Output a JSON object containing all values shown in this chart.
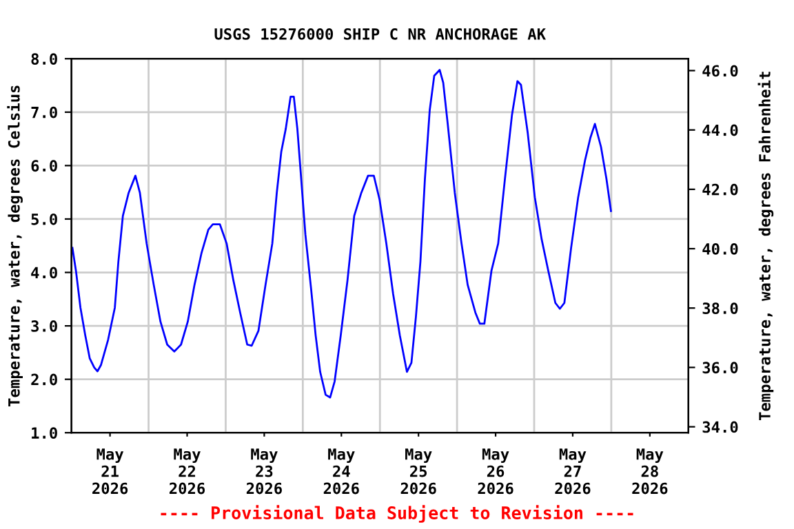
{
  "chart_data": {
    "type": "line",
    "title": "USGS 15276000 SHIP C NR ANCHORAGE AK",
    "ylabel": "Temperature, water, degrees Celsius",
    "y2label": "Temperature, water, degrees Fahrenheit",
    "annotations": [
      "---- Provisional Data Subject to Revision ----"
    ],
    "xlim": [
      "2026-05-20T12:00",
      "2026-05-28T12:00"
    ],
    "xticks": [
      {
        "value": "2026-05-21T00:00",
        "label": "May\n21\n2026"
      },
      {
        "value": "2026-05-22T00:00",
        "label": "May\n22\n2026"
      },
      {
        "value": "2026-05-23T00:00",
        "label": "May\n23\n2026"
      },
      {
        "value": "2026-05-24T00:00",
        "label": "May\n24\n2026"
      },
      {
        "value": "2026-05-25T00:00",
        "label": "May\n25\n2026"
      },
      {
        "value": "2026-05-26T00:00",
        "label": "May\n26\n2026"
      },
      {
        "value": "2026-05-27T00:00",
        "label": "May\n27\n2026"
      },
      {
        "value": "2026-05-28T00:00",
        "label": "May\n28\n2026"
      },
      {
        "value": "2026-05-21T12:00",
        "label": null
      },
      {
        "value": "2026-05-22T12:00",
        "label": null
      },
      {
        "value": "2026-05-23T12:00",
        "label": null
      },
      {
        "value": "2026-05-24T12:00",
        "label": null
      },
      {
        "value": "2026-05-25T12:00",
        "label": null
      },
      {
        "value": "2026-05-26T12:00",
        "label": null
      },
      {
        "value": "2026-05-27T12:00",
        "label": null
      }
    ],
    "ylim": [
      1.0,
      8.0
    ],
    "yticks": [
      {
        "value": 1,
        "label": "1.0"
      },
      {
        "value": 2,
        "label": "2.0"
      },
      {
        "value": 3,
        "label": "3.0"
      },
      {
        "value": 4,
        "label": "4.0"
      },
      {
        "value": 5,
        "label": "5.0"
      },
      {
        "value": 6,
        "label": "6.0"
      },
      {
        "value": 7,
        "label": "7.0"
      },
      {
        "value": 8,
        "label": "8.0"
      }
    ],
    "y2lim": [
      33.8,
      46.4
    ],
    "y2ticks": [
      {
        "value": 34,
        "label": "34.0"
      },
      {
        "value": 36,
        "label": "36.0"
      },
      {
        "value": 38,
        "label": "38.0"
      },
      {
        "value": 40,
        "label": "40.0"
      },
      {
        "value": 42,
        "label": "42.0"
      },
      {
        "value": 44,
        "label": "44.0"
      },
      {
        "value": 46,
        "label": "46.0"
      }
    ],
    "grid": true,
    "legend": false,
    "line_style": "solid",
    "series": [
      {
        "color": "#0000ff",
        "x": [
          "2026-05-20T12:18",
          "2026-05-20T13:24",
          "2026-05-20T14:48",
          "2026-05-20T16:18",
          "2026-05-20T17:42",
          "2026-05-20T19:06",
          "2026-05-20T20:06",
          "2026-05-20T21:12",
          "2026-05-20T23:24",
          "2026-05-21T01:30",
          "2026-05-21T02:36",
          "2026-05-21T04:00",
          "2026-05-21T05:48",
          "2026-05-21T07:54",
          "2026-05-21T09:18",
          "2026-05-21T11:24",
          "2026-05-21T13:36",
          "2026-05-21T15:42",
          "2026-05-21T17:48",
          "2026-05-21T20:00",
          "2026-05-21T22:06",
          "2026-05-22T00:12",
          "2026-05-22T02:18",
          "2026-05-22T04:30",
          "2026-05-22T06:36",
          "2026-05-22T08:00",
          "2026-05-22T10:12",
          "2026-05-22T12:18",
          "2026-05-22T14:24",
          "2026-05-22T16:30",
          "2026-05-22T18:42",
          "2026-05-22T20:06",
          "2026-05-22T22:12",
          "2026-05-23T00:24",
          "2026-05-23T02:30",
          "2026-05-23T03:54",
          "2026-05-23T05:18",
          "2026-05-23T06:42",
          "2026-05-23T08:12",
          "2026-05-23T09:12",
          "2026-05-23T10:18",
          "2026-05-23T11:24",
          "2026-05-23T12:48",
          "2026-05-23T14:36",
          "2026-05-23T16:00",
          "2026-05-23T17:24",
          "2026-05-23T19:06",
          "2026-05-23T20:30",
          "2026-05-23T21:54",
          "2026-05-23T23:48",
          "2026-05-24T01:54",
          "2026-05-24T04:00",
          "2026-05-24T06:12",
          "2026-05-24T08:18",
          "2026-05-24T10:06",
          "2026-05-24T11:54",
          "2026-05-24T14:00",
          "2026-05-24T16:06",
          "2026-05-24T18:12",
          "2026-05-24T19:36",
          "2026-05-24T20:24",
          "2026-05-24T21:48",
          "2026-05-24T23:12",
          "2026-05-25T00:36",
          "2026-05-25T02:00",
          "2026-05-25T03:30",
          "2026-05-25T04:54",
          "2026-05-25T06:36",
          "2026-05-25T07:42",
          "2026-05-25T09:06",
          "2026-05-25T11:18",
          "2026-05-25T13:24",
          "2026-05-25T15:18",
          "2026-05-25T17:42",
          "2026-05-25T19:06",
          "2026-05-25T20:30",
          "2026-05-25T22:42",
          "2026-05-26T00:48",
          "2026-05-26T02:54",
          "2026-05-26T05:06",
          "2026-05-26T06:48",
          "2026-05-26T07:54",
          "2026-05-26T10:00",
          "2026-05-26T12:12",
          "2026-05-26T14:18",
          "2026-05-26T16:24",
          "2026-05-26T18:36",
          "2026-05-26T20:00",
          "2026-05-26T21:24",
          "2026-05-26T23:30",
          "2026-05-27T01:42",
          "2026-05-27T03:48",
          "2026-05-27T05:30",
          "2026-05-27T06:54",
          "2026-05-27T08:48",
          "2026-05-27T10:30",
          "2026-05-27T11:54"
        ],
        "values": [
          4.46,
          4.03,
          3.34,
          2.82,
          2.39,
          2.22,
          2.15,
          2.27,
          2.74,
          3.34,
          4.2,
          5.06,
          5.49,
          5.81,
          5.49,
          4.54,
          3.77,
          3.08,
          2.65,
          2.52,
          2.65,
          3.08,
          3.77,
          4.37,
          4.8,
          4.9,
          4.9,
          4.54,
          3.85,
          3.25,
          2.65,
          2.63,
          2.91,
          3.77,
          4.54,
          5.49,
          6.26,
          6.69,
          7.29,
          7.29,
          6.69,
          5.83,
          4.71,
          3.68,
          2.82,
          2.14,
          1.71,
          1.66,
          1.96,
          2.82,
          3.85,
          5.06,
          5.49,
          5.81,
          5.81,
          5.36,
          4.54,
          3.6,
          2.82,
          2.39,
          2.14,
          2.31,
          3.17,
          4.2,
          5.75,
          7.04,
          7.68,
          7.79,
          7.55,
          6.78,
          5.49,
          4.54,
          3.77,
          3.25,
          3.04,
          3.04,
          4.03,
          4.54,
          5.75,
          6.95,
          7.58,
          7.51,
          6.61,
          5.41,
          4.63,
          4.03,
          3.43,
          3.32,
          3.43,
          4.46,
          5.41,
          6.09,
          6.52,
          6.78,
          6.35,
          5.75,
          5.15
        ]
      }
    ]
  }
}
